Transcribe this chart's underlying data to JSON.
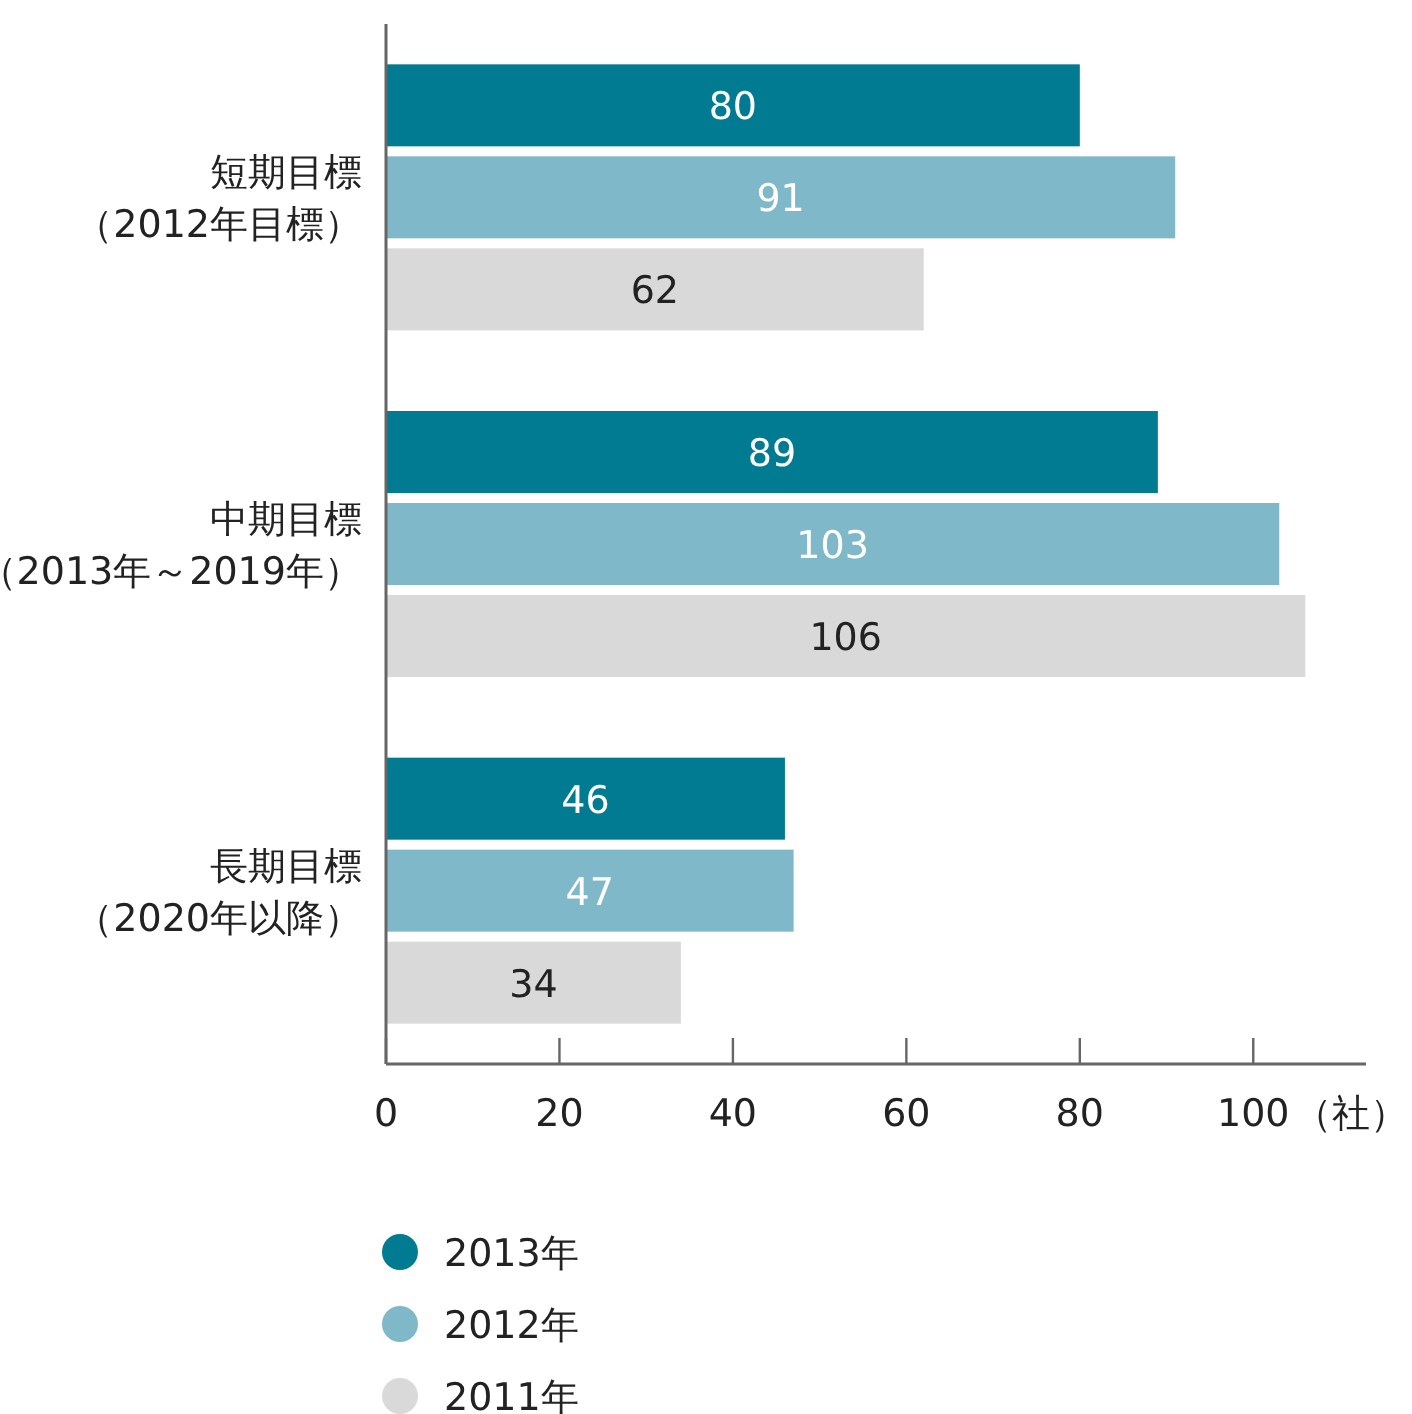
{
  "chart_data": {
    "type": "bar",
    "orientation": "horizontal",
    "categories": [
      "短期目標（2012年目標）",
      "中期目標（2013年～2019年）",
      "長期目標（2020年以降）"
    ],
    "series": [
      {
        "name": "2013年",
        "color": "#007b91",
        "values": [
          80,
          89,
          46
        ]
      },
      {
        "name": "2012年",
        "color": "#7fb8c8",
        "values": [
          91,
          103,
          47
        ]
      },
      {
        "name": "2011年",
        "color": "#d9d9da",
        "values": [
          62,
          106,
          34
        ]
      }
    ],
    "xlim": [
      0,
      113
    ],
    "xticks": [
      0,
      20,
      40,
      60,
      80,
      100
    ],
    "xlabel": "（社）",
    "data_labels": true,
    "grid": false,
    "legend": "bottom left"
  }
}
